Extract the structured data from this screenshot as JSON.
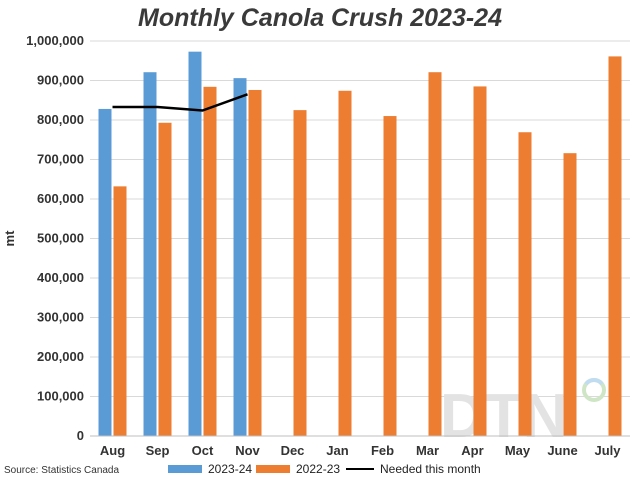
{
  "chart_data": {
    "type": "bar",
    "title": "Monthly Canola Crush 2023-24",
    "ylabel": "mt",
    "xlabel": "",
    "ylim": [
      0,
      1000000
    ],
    "yticks": [
      0,
      100000,
      200000,
      300000,
      400000,
      500000,
      600000,
      700000,
      800000,
      900000,
      1000000
    ],
    "ytick_labels": [
      "0",
      "100,000",
      "200,000",
      "300,000",
      "400,000",
      "500,000",
      "600,000",
      "700,000",
      "800,000",
      "900,000",
      "1,000,000"
    ],
    "categories": [
      "Aug",
      "Sep",
      "Oct",
      "Nov",
      "Dec",
      "Jan",
      "Feb",
      "Mar",
      "Apr",
      "May",
      "June",
      "July"
    ],
    "series": [
      {
        "name": "2023-24",
        "type": "bar",
        "color": "#5b9bd5",
        "values": [
          828000,
          921000,
          973000,
          906000,
          null,
          null,
          null,
          null,
          null,
          null,
          null,
          null
        ]
      },
      {
        "name": "2022-23",
        "type": "bar",
        "color": "#ed7d31",
        "values": [
          632000,
          793000,
          884000,
          876000,
          825000,
          874000,
          810000,
          921000,
          885000,
          769000,
          716000,
          961000
        ]
      },
      {
        "name": "Needed this month",
        "type": "line",
        "color": "#000000",
        "values": [
          833000,
          833000,
          824000,
          865000,
          null,
          null,
          null,
          null,
          null,
          null,
          null,
          null
        ]
      }
    ],
    "grid": true,
    "legend_position": "bottom"
  },
  "source": "Source: Statistics Canada",
  "watermark": "DTN"
}
